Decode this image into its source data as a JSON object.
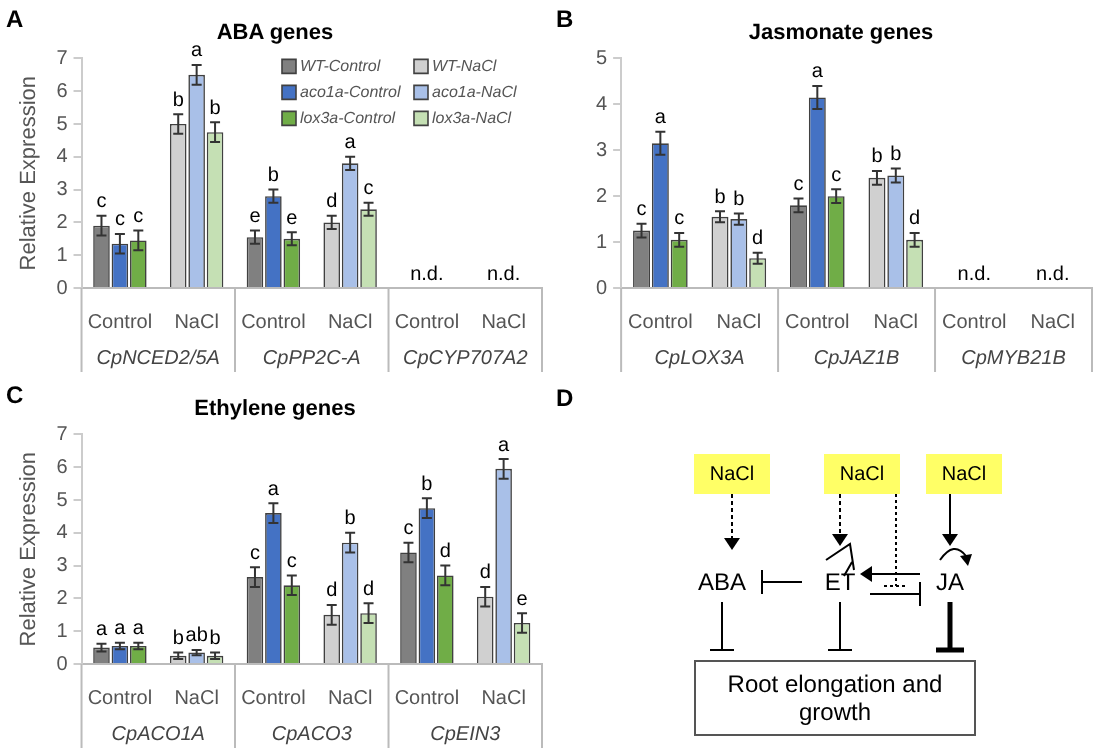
{
  "chart_data": [
    {
      "type": "bar",
      "title": "ABA genes",
      "ylabel": "Relative Expression",
      "categories": [
        "Control",
        "NaCl",
        "Control",
        "NaCl",
        "Control",
        "NaCl"
      ],
      "ylim": [
        0,
        7
      ],
      "yticks": [
        0,
        1,
        2,
        3,
        4,
        5,
        6,
        7
      ],
      "legend": "top right",
      "annotations": [
        "A",
        "CpNCED2/5A",
        "CpPP2C-A",
        "CpCYP707A2"
      ],
      "series": [
        {
          "name": "WT-Control",
          "color": "#808080",
          "values": [
            1.9,
            null,
            1.55,
            null,
            0,
            null
          ],
          "errors": [
            0.3,
            null,
            0.2,
            null,
            null,
            null
          ],
          "value_labels": [
            "c",
            null,
            "e",
            null,
            null,
            null
          ]
        },
        {
          "name": "aco1a-Control",
          "color": "#4472c4",
          "values": [
            1.35,
            null,
            2.8,
            null,
            0,
            null
          ],
          "errors": [
            0.3,
            null,
            0.2,
            null,
            null,
            null
          ],
          "value_labels": [
            "c",
            null,
            "b",
            null,
            "n.d.",
            null
          ]
        },
        {
          "name": "lox3a-Control",
          "color": "#70ad47",
          "values": [
            1.45,
            null,
            1.5,
            null,
            0,
            null
          ],
          "errors": [
            0.3,
            null,
            0.2,
            null,
            null,
            null
          ],
          "value_labels": [
            "c",
            null,
            "e",
            null,
            null,
            null
          ]
        },
        {
          "name": "WT-NaCl",
          "color": "#d0d0d0",
          "values": [
            null,
            5.0,
            null,
            2.0,
            null,
            0
          ],
          "errors": [
            null,
            0.3,
            null,
            0.2,
            null,
            null
          ],
          "value_labels": [
            null,
            "b",
            null,
            "d",
            null,
            null
          ]
        },
        {
          "name": "aco1a-NaCl",
          "color": "#a9c0e8",
          "values": [
            null,
            6.5,
            null,
            3.8,
            null,
            0
          ],
          "errors": [
            null,
            0.3,
            null,
            0.2,
            null,
            null
          ],
          "value_labels": [
            null,
            "a",
            null,
            "a",
            null,
            "n.d."
          ]
        },
        {
          "name": "lox3a-NaCl",
          "color": "#c5e0b4",
          "values": [
            null,
            4.75,
            null,
            2.4,
            null,
            0
          ],
          "errors": [
            null,
            0.3,
            null,
            0.2,
            null,
            null
          ],
          "value_labels": [
            null,
            "b",
            null,
            "c",
            null,
            null
          ]
        }
      ]
    },
    {
      "type": "bar",
      "title": "Jasmonate genes",
      "categories": [
        "Control",
        "NaCl",
        "Control",
        "NaCl",
        "Control",
        "NaCl"
      ],
      "ylim": [
        0,
        5
      ],
      "yticks": [
        0,
        1,
        2,
        3,
        4,
        5
      ],
      "annotations": [
        "B",
        "CpLOX3A",
        "CpJAZ1B",
        "CpMYB21B"
      ],
      "series": [
        {
          "color": "#808080",
          "values": [
            1.25,
            null,
            1.8,
            null,
            0,
            null
          ],
          "errors": [
            0.15,
            null,
            0.15,
            null,
            null,
            null
          ],
          "value_labels": [
            "c",
            null,
            "c",
            null,
            null,
            null
          ]
        },
        {
          "color": "#4472c4",
          "values": [
            3.15,
            null,
            4.15,
            null,
            0,
            null
          ],
          "errors": [
            0.25,
            null,
            0.25,
            null,
            null,
            null
          ],
          "value_labels": [
            "a",
            null,
            "a",
            null,
            "n.d.",
            null
          ]
        },
        {
          "color": "#70ad47",
          "values": [
            1.05,
            null,
            2.0,
            null,
            0,
            null
          ],
          "errors": [
            0.15,
            null,
            0.15,
            null,
            null,
            null
          ],
          "value_labels": [
            "c",
            null,
            "c",
            null,
            null,
            null
          ]
        },
        {
          "color": "#d0d0d0",
          "values": [
            null,
            1.55,
            null,
            2.4,
            null,
            0
          ],
          "errors": [
            null,
            0.12,
            null,
            0.15,
            null,
            null
          ],
          "value_labels": [
            null,
            "b",
            null,
            "b",
            null,
            null
          ]
        },
        {
          "color": "#a9c0e8",
          "values": [
            null,
            1.5,
            null,
            2.45,
            null,
            0
          ],
          "errors": [
            null,
            0.12,
            null,
            0.15,
            null,
            null
          ],
          "value_labels": [
            null,
            "b",
            null,
            "b",
            null,
            "n.d."
          ]
        },
        {
          "color": "#c5e0b4",
          "values": [
            null,
            0.65,
            null,
            1.05,
            null,
            0
          ],
          "errors": [
            null,
            0.12,
            null,
            0.15,
            null,
            null
          ],
          "value_labels": [
            null,
            "d",
            null,
            "d",
            null,
            null
          ]
        }
      ]
    },
    {
      "type": "bar",
      "title": "Ethylene genes",
      "ylabel": "Relative Expression",
      "categories": [
        "Control",
        "NaCl",
        "Control",
        "NaCl",
        "Control",
        "NaCl"
      ],
      "ylim": [
        0,
        7
      ],
      "yticks": [
        0,
        1,
        2,
        3,
        4,
        5,
        6,
        7
      ],
      "annotations": [
        "C",
        "CpACO1A",
        "CpACO3",
        "CpEIN3"
      ],
      "series": [
        {
          "color": "#808080",
          "values": [
            0.5,
            null,
            2.65,
            null,
            3.4,
            null
          ],
          "errors": [
            0.12,
            null,
            0.3,
            null,
            0.3,
            null
          ],
          "value_labels": [
            "a",
            null,
            "c",
            null,
            "c",
            null
          ]
        },
        {
          "color": "#4472c4",
          "values": [
            0.55,
            null,
            4.6,
            null,
            4.75,
            null
          ],
          "errors": [
            0.1,
            null,
            0.3,
            null,
            0.3,
            null
          ],
          "value_labels": [
            "a",
            null,
            "a",
            null,
            "b",
            null
          ]
        },
        {
          "color": "#70ad47",
          "values": [
            0.55,
            null,
            2.4,
            null,
            2.7,
            null
          ],
          "errors": [
            0.1,
            null,
            0.3,
            null,
            0.3,
            null
          ],
          "value_labels": [
            "a",
            null,
            "c",
            null,
            "d",
            null
          ]
        },
        {
          "color": "#d0d0d0",
          "values": [
            null,
            0.25,
            null,
            1.5,
            null,
            2.05
          ],
          "errors": [
            null,
            0.1,
            null,
            0.3,
            null,
            0.3
          ],
          "value_labels": [
            null,
            "b",
            null,
            "d",
            null,
            "d"
          ]
        },
        {
          "color": "#a9c0e8",
          "values": [
            null,
            0.35,
            null,
            3.7,
            null,
            5.95
          ],
          "errors": [
            null,
            0.08,
            null,
            0.3,
            null,
            0.3
          ],
          "value_labels": [
            null,
            "ab",
            null,
            "b",
            null,
            "a"
          ]
        },
        {
          "color": "#c5e0b4",
          "values": [
            null,
            0.25,
            null,
            1.55,
            null,
            1.25
          ],
          "errors": [
            null,
            0.1,
            null,
            0.3,
            null,
            0.3
          ],
          "value_labels": [
            null,
            "b",
            null,
            "d",
            null,
            "e"
          ]
        }
      ]
    },
    {
      "type": "other",
      "annotations": [
        "D",
        "NaCl",
        "NaCl",
        "NaCl",
        "ABA",
        "ET",
        "JA",
        "Root elongation and growth"
      ]
    }
  ]
}
